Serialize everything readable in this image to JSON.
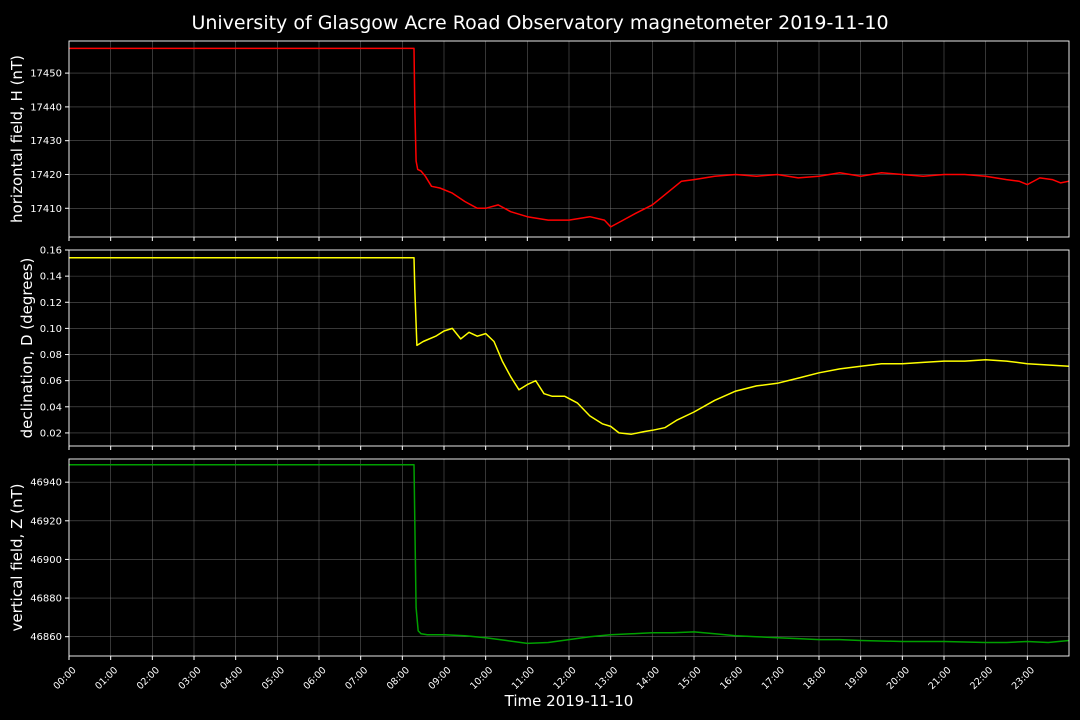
{
  "title": "University of Glasgow Acre Road Observatory magnetometer 2019-11-10",
  "xlabel": "Time 2019-11-10",
  "x_ticks": [
    "00:00",
    "01:00",
    "02:00",
    "03:00",
    "04:00",
    "05:00",
    "06:00",
    "07:00",
    "08:00",
    "09:00",
    "10:00",
    "11:00",
    "12:00",
    "13:00",
    "14:00",
    "15:00",
    "16:00",
    "17:00",
    "18:00",
    "19:00",
    "20:00",
    "21:00",
    "22:00",
    "23:00"
  ],
  "colors": {
    "background": "#000000",
    "text": "#ffffff",
    "axes": "#ffffff",
    "grid": "#808080"
  },
  "chart_data": [
    {
      "type": "line",
      "ylabel": "horizontal field, H (nT)",
      "ylim": [
        17401.5,
        17459.5
      ],
      "yticks": [
        17410,
        17420,
        17430,
        17440,
        17450
      ],
      "xlim": [
        0,
        24
      ],
      "grid": true,
      "series": [
        {
          "color": "#ff0000",
          "x": [
            0,
            8.28,
            8.3,
            8.33,
            8.37,
            8.45,
            8.55,
            8.7,
            8.9,
            9.2,
            9.5,
            9.8,
            10.0,
            10.3,
            10.6,
            11.0,
            11.5,
            12.0,
            12.5,
            12.85,
            13.0,
            13.3,
            13.6,
            14.0,
            14.3,
            14.7,
            15.0,
            15.5,
            16.0,
            16.5,
            17.0,
            17.5,
            18.0,
            18.5,
            19.0,
            19.5,
            20.0,
            20.5,
            21.0,
            21.5,
            22.0,
            22.5,
            22.8,
            23.0,
            23.3,
            23.6,
            23.8,
            24.0
          ],
          "y": [
            17457.3,
            17457.3,
            17440,
            17424,
            17421.5,
            17421,
            17419.5,
            17416.5,
            17416,
            17414.5,
            17412,
            17410,
            17410,
            17411,
            17409,
            17407.5,
            17406.5,
            17406.5,
            17407.5,
            17406.5,
            17404.5,
            17406.5,
            17408.5,
            17411,
            17414,
            17418,
            17418.5,
            17419.5,
            17420,
            17419.5,
            17420,
            17419,
            17419.5,
            17420.5,
            17419.5,
            17420.5,
            17420,
            17419.5,
            17420,
            17420,
            17419.5,
            17418.5,
            17418,
            17417,
            17419,
            17418.5,
            17417.5,
            17418
          ]
        }
      ]
    },
    {
      "type": "line",
      "ylabel": "declination, D (degrees)",
      "ylim": [
        0.01,
        0.16
      ],
      "yticks": [
        0.02,
        0.04,
        0.06,
        0.08,
        0.1,
        0.12,
        0.14,
        0.16
      ],
      "xlim": [
        0,
        24
      ],
      "grid": true,
      "series": [
        {
          "color": "#ffff00",
          "x": [
            0,
            8.28,
            8.3,
            8.35,
            8.5,
            8.8,
            9.0,
            9.2,
            9.4,
            9.6,
            9.8,
            10.0,
            10.2,
            10.4,
            10.6,
            10.8,
            11.0,
            11.2,
            11.4,
            11.6,
            11.9,
            12.2,
            12.5,
            12.8,
            13.0,
            13.2,
            13.5,
            13.8,
            14.0,
            14.3,
            14.6,
            15.0,
            15.5,
            16.0,
            16.5,
            17.0,
            17.5,
            18.0,
            18.5,
            19.0,
            19.5,
            20.0,
            20.5,
            21.0,
            21.5,
            22.0,
            22.5,
            23.0,
            23.5,
            24.0
          ],
          "y": [
            0.154,
            0.154,
            0.13,
            0.087,
            0.09,
            0.094,
            0.098,
            0.1,
            0.092,
            0.097,
            0.094,
            0.096,
            0.09,
            0.075,
            0.063,
            0.053,
            0.057,
            0.06,
            0.05,
            0.048,
            0.048,
            0.043,
            0.033,
            0.027,
            0.025,
            0.02,
            0.019,
            0.021,
            0.022,
            0.024,
            0.03,
            0.036,
            0.045,
            0.052,
            0.056,
            0.058,
            0.062,
            0.066,
            0.069,
            0.071,
            0.073,
            0.073,
            0.074,
            0.075,
            0.075,
            0.076,
            0.075,
            0.073,
            0.072,
            0.071
          ]
        }
      ]
    },
    {
      "type": "line",
      "ylabel": "vertical field, Z (nT)",
      "ylim": [
        46850,
        46952
      ],
      "yticks": [
        46860,
        46880,
        46900,
        46920,
        46940
      ],
      "xlim": [
        0,
        24
      ],
      "grid": true,
      "series": [
        {
          "color": "#00a000",
          "x": [
            0,
            8.28,
            8.3,
            8.33,
            8.38,
            8.45,
            8.6,
            9.0,
            9.5,
            10.0,
            10.5,
            11.0,
            11.5,
            12.0,
            12.5,
            13.0,
            13.5,
            14.0,
            14.5,
            15.0,
            15.5,
            16.0,
            16.5,
            17.0,
            17.5,
            18.0,
            18.5,
            19.0,
            20.0,
            21.0,
            22.0,
            22.5,
            23.0,
            23.5,
            24.0
          ],
          "y": [
            46949,
            46949,
            46920,
            46875,
            46863,
            46861.5,
            46861,
            46861,
            46860.5,
            46859.5,
            46858,
            46856.5,
            46857,
            46858.5,
            46860,
            46861,
            46861.5,
            46862,
            46862,
            46862.5,
            46861.5,
            46860.5,
            46860,
            46859.5,
            46859,
            46858.5,
            46858.5,
            46858,
            46857.5,
            46857.5,
            46857,
            46857,
            46857.5,
            46857,
            46858
          ]
        }
      ]
    }
  ]
}
